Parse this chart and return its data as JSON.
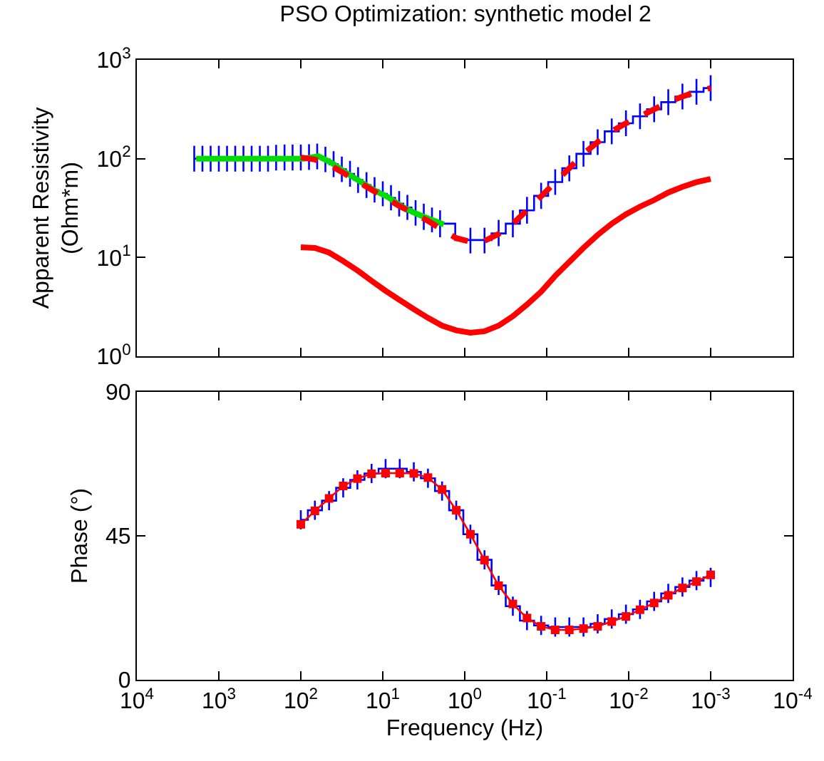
{
  "chart_data": [
    {
      "type": "line",
      "title": "PSO Optimization: synthetic model 2",
      "ylabel": "Apparent Resistivity\n(Ohm*m)",
      "log": "xy",
      "tick_labels": "y",
      "xlim": [
        10000,
        0.0001
      ],
      "xticks": [
        {
          "value": 10000,
          "label": null
        },
        {
          "value": 1000,
          "label": null
        },
        {
          "value": 100,
          "label": null
        },
        {
          "value": 10,
          "label": null
        },
        {
          "value": 1,
          "label": null
        },
        {
          "value": 0.1,
          "label": null
        },
        {
          "value": 0.01,
          "label": null
        },
        {
          "value": 0.001,
          "label": null
        },
        {
          "value": 0.0001,
          "label": null
        }
      ],
      "ylim": [
        1,
        1000
      ],
      "yticks": [
        {
          "value": 1,
          "label": "10$^{0}$"
        },
        {
          "value": 10,
          "label": "10$^{1}$"
        },
        {
          "value": 100,
          "label": "10$^{2}$"
        },
        {
          "value": 1000,
          "label": "10$^{3}$"
        }
      ],
      "series": [
        {
          "type": "step",
          "color": "#0000ff",
          "marker": "none",
          "line_style": "solid",
          "x": [
            1995,
            1585,
            1259,
            1000,
            794,
            631,
            501,
            398,
            316,
            251,
            200,
            158,
            126,
            100,
            79.4,
            63.1,
            50.1,
            39.8,
            31.6,
            25.1,
            20.0,
            15.8,
            12.6,
            10,
            7.94,
            6.31,
            5.01,
            3.98,
            3.16,
            2.51,
            2.0,
            0.853,
            0.574,
            0.386,
            0.259,
            0.174,
            0.117,
            0.0788,
            0.053,
            0.0356,
            0.0239,
            0.0161,
            0.0108,
            0.00728,
            0.00489,
            0.00329,
            0.00221,
            0.00149,
            0.001
          ],
          "values": [
            100,
            100,
            100,
            100,
            100,
            100,
            100,
            100,
            100,
            100,
            102,
            103,
            103,
            103,
            104,
            105,
            98,
            88,
            78,
            70,
            61,
            54,
            48,
            44,
            40,
            35,
            32,
            28,
            26,
            24,
            22,
            15,
            15,
            17.5,
            22,
            30,
            42,
            58,
            80,
            112,
            147,
            189,
            228,
            268,
            316,
            373,
            425,
            475,
            518
          ],
          "errors": [
            [
              74,
              135
            ],
            [
              74,
              135
            ],
            [
              74,
              135
            ],
            [
              74,
              135
            ],
            [
              74,
              135
            ],
            [
              74,
              135
            ],
            [
              74,
              135
            ],
            [
              74,
              135
            ],
            [
              74,
              135
            ],
            [
              74,
              135
            ],
            [
              76,
              138
            ],
            [
              76,
              139
            ],
            [
              76,
              139
            ],
            [
              76,
              139
            ],
            [
              77,
              140
            ],
            [
              78,
              142
            ],
            [
              73,
              132
            ],
            [
              65,
              119
            ],
            [
              58,
              105
            ],
            [
              52,
              95
            ],
            [
              45,
              82
            ],
            [
              40,
              73
            ],
            [
              36,
              65
            ],
            [
              33,
              59
            ],
            [
              30,
              54
            ],
            [
              26,
              47
            ],
            [
              24,
              43
            ],
            [
              21,
              38
            ],
            [
              19,
              35
            ],
            [
              18,
              32
            ],
            [
              16,
              30
            ],
            [
              11,
              20
            ],
            [
              11,
              20
            ],
            [
              13,
              24
            ],
            [
              16,
              30
            ],
            [
              22,
              41
            ],
            [
              31,
              57
            ],
            [
              43,
              78
            ],
            [
              59,
              108
            ],
            [
              83,
              151
            ],
            [
              109,
              198
            ],
            [
              140,
              255
            ],
            [
              169,
              308
            ],
            [
              199,
              362
            ],
            [
              234,
              427
            ],
            [
              276,
              504
            ],
            [
              315,
              574
            ],
            [
              352,
              641
            ],
            [
              384,
              699
            ]
          ]
        },
        {
          "color": "#00dd00",
          "marker": "none",
          "line_style": "solid",
          "x": [
            1890,
            830,
            379,
            174,
            91,
            61,
            41.5,
            28,
            19,
            12.8,
            8.7,
            5.9,
            4.0,
            2.7,
            1.8
          ],
          "values": [
            100,
            100,
            100,
            100,
            100,
            106,
            90,
            72,
            59,
            48,
            41,
            33,
            28,
            24.5,
            21.6
          ]
        },
        {
          "color": "#ff0000",
          "marker": "none",
          "line_style": "dashed",
          "x": [
            100,
            67.3,
            45.2,
            30.4,
            20.4,
            13.7,
            9.24,
            6.21,
            4.18,
            2.81,
            1.89,
            1.27,
            0.853,
            0.574,
            0.386,
            0.259,
            0.174,
            0.117,
            0.0788,
            0.053,
            0.0356,
            0.0239,
            0.0161,
            0.0108,
            0.00728,
            0.00489,
            0.00329,
            0.00221,
            0.00149,
            0.001
          ],
          "values": [
            103,
            98,
            87,
            72,
            59,
            48.5,
            40,
            33,
            28,
            23.5,
            19.1,
            15.7,
            14.4,
            14.7,
            17.3,
            22,
            30,
            41.6,
            57.8,
            80,
            112,
            147,
            189,
            228,
            268,
            316,
            373,
            425,
            475,
            518
          ]
        },
        {
          "color": "#ff0000",
          "marker": "none",
          "line_style": "solid",
          "x": [
            100,
            67.3,
            45.2,
            30.4,
            20.4,
            13.7,
            9.24,
            6.21,
            4.18,
            2.81,
            1.89,
            1.27,
            0.853,
            0.574,
            0.386,
            0.259,
            0.174,
            0.117,
            0.0788,
            0.053,
            0.0356,
            0.0239,
            0.0161,
            0.0108,
            0.00728,
            0.00489,
            0.00329,
            0.00221,
            0.00149,
            0.001
          ],
          "values": [
            12.7,
            12.5,
            11.2,
            9.2,
            7.4,
            5.8,
            4.6,
            3.7,
            3.0,
            2.45,
            2.04,
            1.83,
            1.73,
            1.79,
            2.04,
            2.54,
            3.34,
            4.5,
            6.5,
            9.0,
            12.5,
            16.9,
            22,
            27.4,
            32.7,
            38.1,
            45.4,
            51.8,
            57.8,
            62.4
          ]
        }
      ]
    },
    {
      "type": "line",
      "xlabel": "Frequency (Hz)",
      "ylabel": "Phase (°)",
      "log": "x",
      "xlim": [
        10000,
        0.0001
      ],
      "xticks": [
        {
          "value": 10000,
          "label": "10$^{4}$"
        },
        {
          "value": 1000,
          "label": "10$^{3}$"
        },
        {
          "value": 100,
          "label": "10$^{2}$"
        },
        {
          "value": 10,
          "label": "10$^{1}$"
        },
        {
          "value": 1,
          "label": "10$^{0}$"
        },
        {
          "value": 0.1,
          "label": "10$^{-1}$"
        },
        {
          "value": 0.01,
          "label": "10$^{-2}$"
        },
        {
          "value": 0.001,
          "label": "10$^{-3}$"
        },
        {
          "value": 0.0001,
          "label": "10$^{-4}$"
        }
      ],
      "ylim": [
        0,
        90
      ],
      "yticks": [
        0,
        45,
        90
      ],
      "x": [
        100,
        67.3,
        45.2,
        30.4,
        20.4,
        13.7,
        9.24,
        6.21,
        4.18,
        2.81,
        1.89,
        1.27,
        0.853,
        0.574,
        0.386,
        0.259,
        0.174,
        0.117,
        0.0788,
        0.053,
        0.0356,
        0.0239,
        0.0161,
        0.0108,
        0.00728,
        0.00489,
        0.00329,
        0.00221,
        0.00149,
        0.001
      ],
      "series": [
        {
          "type": "step",
          "color": "#0000ff",
          "marker": "none",
          "line_style": "solid",
          "values": [
            50,
            53,
            56,
            60,
            62.5,
            64.5,
            66,
            66,
            65,
            63,
            59,
            53,
            45.5,
            37.5,
            29.5,
            23,
            18.5,
            17,
            16.5,
            16.5,
            16.5,
            17.5,
            19,
            20.5,
            22,
            24.5,
            27,
            29,
            31,
            32
          ],
          "errors": [
            3,
            3,
            3,
            3,
            3,
            3,
            3,
            3,
            3,
            3,
            3,
            3,
            3,
            3,
            3,
            3,
            3,
            3,
            3,
            3,
            3,
            3,
            3,
            3,
            3,
            3,
            3,
            3,
            3,
            3
          ]
        },
        {
          "color": "#ff0000",
          "marker": "square",
          "line_style": "solid",
          "values": [
            48.6,
            52.8,
            56.7,
            60.6,
            62.9,
            64.4,
            64.6,
            64.6,
            64.5,
            63.2,
            59.5,
            53.0,
            45.5,
            37.4,
            29.4,
            23.7,
            19.3,
            16.7,
            15.6,
            15.6,
            16.0,
            16.7,
            18.2,
            19.8,
            21.9,
            24.0,
            26.4,
            28.7,
            30.7,
            32.8
          ]
        }
      ]
    }
  ]
}
